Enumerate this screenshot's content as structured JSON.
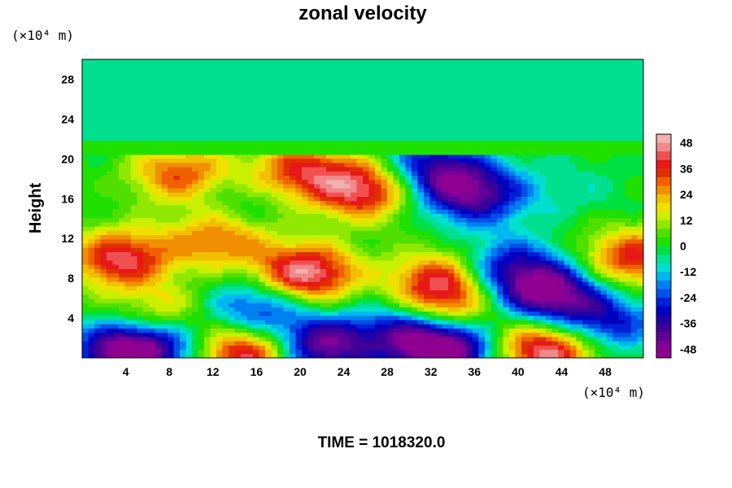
{
  "chart_data": {
    "type": "heatmap",
    "title": "zonal velocity",
    "ylabel": "Height",
    "y_unit_label": "(×10⁴ m)",
    "x_unit_label": "(×10⁴ m)",
    "xlabel": "",
    "xlim": [
      0,
      51.5
    ],
    "ylim": [
      0,
      30
    ],
    "x_ticks": [
      4,
      8,
      12,
      16,
      20,
      24,
      28,
      32,
      36,
      40,
      44,
      48
    ],
    "y_ticks": [
      4,
      8,
      12,
      16,
      20,
      24,
      28
    ],
    "colorbar": {
      "range": [
        -52,
        52
      ],
      "ticks": [
        48,
        36,
        24,
        12,
        0,
        -12,
        -24,
        -36,
        -48
      ],
      "colors": [
        "#f2b0b0",
        "#f08a8a",
        "#f05050",
        "#e81818",
        "#e03000",
        "#f06000",
        "#f09000",
        "#f0c000",
        "#f0e000",
        "#c8f000",
        "#90e800",
        "#50e000",
        "#20e000",
        "#00e040",
        "#00e090",
        "#00e0d0",
        "#00b8f0",
        "#0080f0",
        "#0050e8",
        "#0020d8",
        "#0000c0",
        "#2000a8",
        "#400098",
        "#600098",
        "#800098",
        "#900090"
      ]
    },
    "field_description_blobs": [
      {
        "x": 3.5,
        "y": 10,
        "value": 42
      },
      {
        "x": 20.5,
        "y": 8.5,
        "value": 50
      },
      {
        "x": 26,
        "y": 17,
        "value": 44
      },
      {
        "x": 20,
        "y": 18.8,
        "value": 34
      },
      {
        "x": 9,
        "y": 18.5,
        "value": 32
      },
      {
        "x": 33,
        "y": 8,
        "value": 34
      },
      {
        "x": 33,
        "y": 5,
        "value": 32
      },
      {
        "x": 15,
        "y": 0.5,
        "value": 48
      },
      {
        "x": 42.5,
        "y": 0.8,
        "value": 50
      },
      {
        "x": 50.5,
        "y": 10,
        "value": 38
      },
      {
        "x": 12.5,
        "y": 12,
        "value": 30
      },
      {
        "x": 7.5,
        "y": 4,
        "value": 28
      },
      {
        "x": 43,
        "y": 6.5,
        "value": -46
      },
      {
        "x": 39,
        "y": 9,
        "value": -32
      },
      {
        "x": 36,
        "y": 16.5,
        "value": -40
      },
      {
        "x": 32,
        "y": 19,
        "value": -34
      },
      {
        "x": 4,
        "y": 0.6,
        "value": -52
      },
      {
        "x": 22,
        "y": 1.2,
        "value": -46
      },
      {
        "x": 33.5,
        "y": 0.7,
        "value": -52
      },
      {
        "x": 16,
        "y": 5,
        "value": -30
      },
      {
        "x": 30,
        "y": 3,
        "value": -34
      },
      {
        "x": 8,
        "y": 2,
        "value": -26
      },
      {
        "x": 48,
        "y": 3.5,
        "value": -30
      },
      {
        "x": 14,
        "y": 15.5,
        "value": -8
      },
      {
        "x": 45,
        "y": 17,
        "value": -6
      }
    ],
    "upper_layer_value": -4
  },
  "footer": {
    "time_label": "TIME = 1018320.0"
  }
}
